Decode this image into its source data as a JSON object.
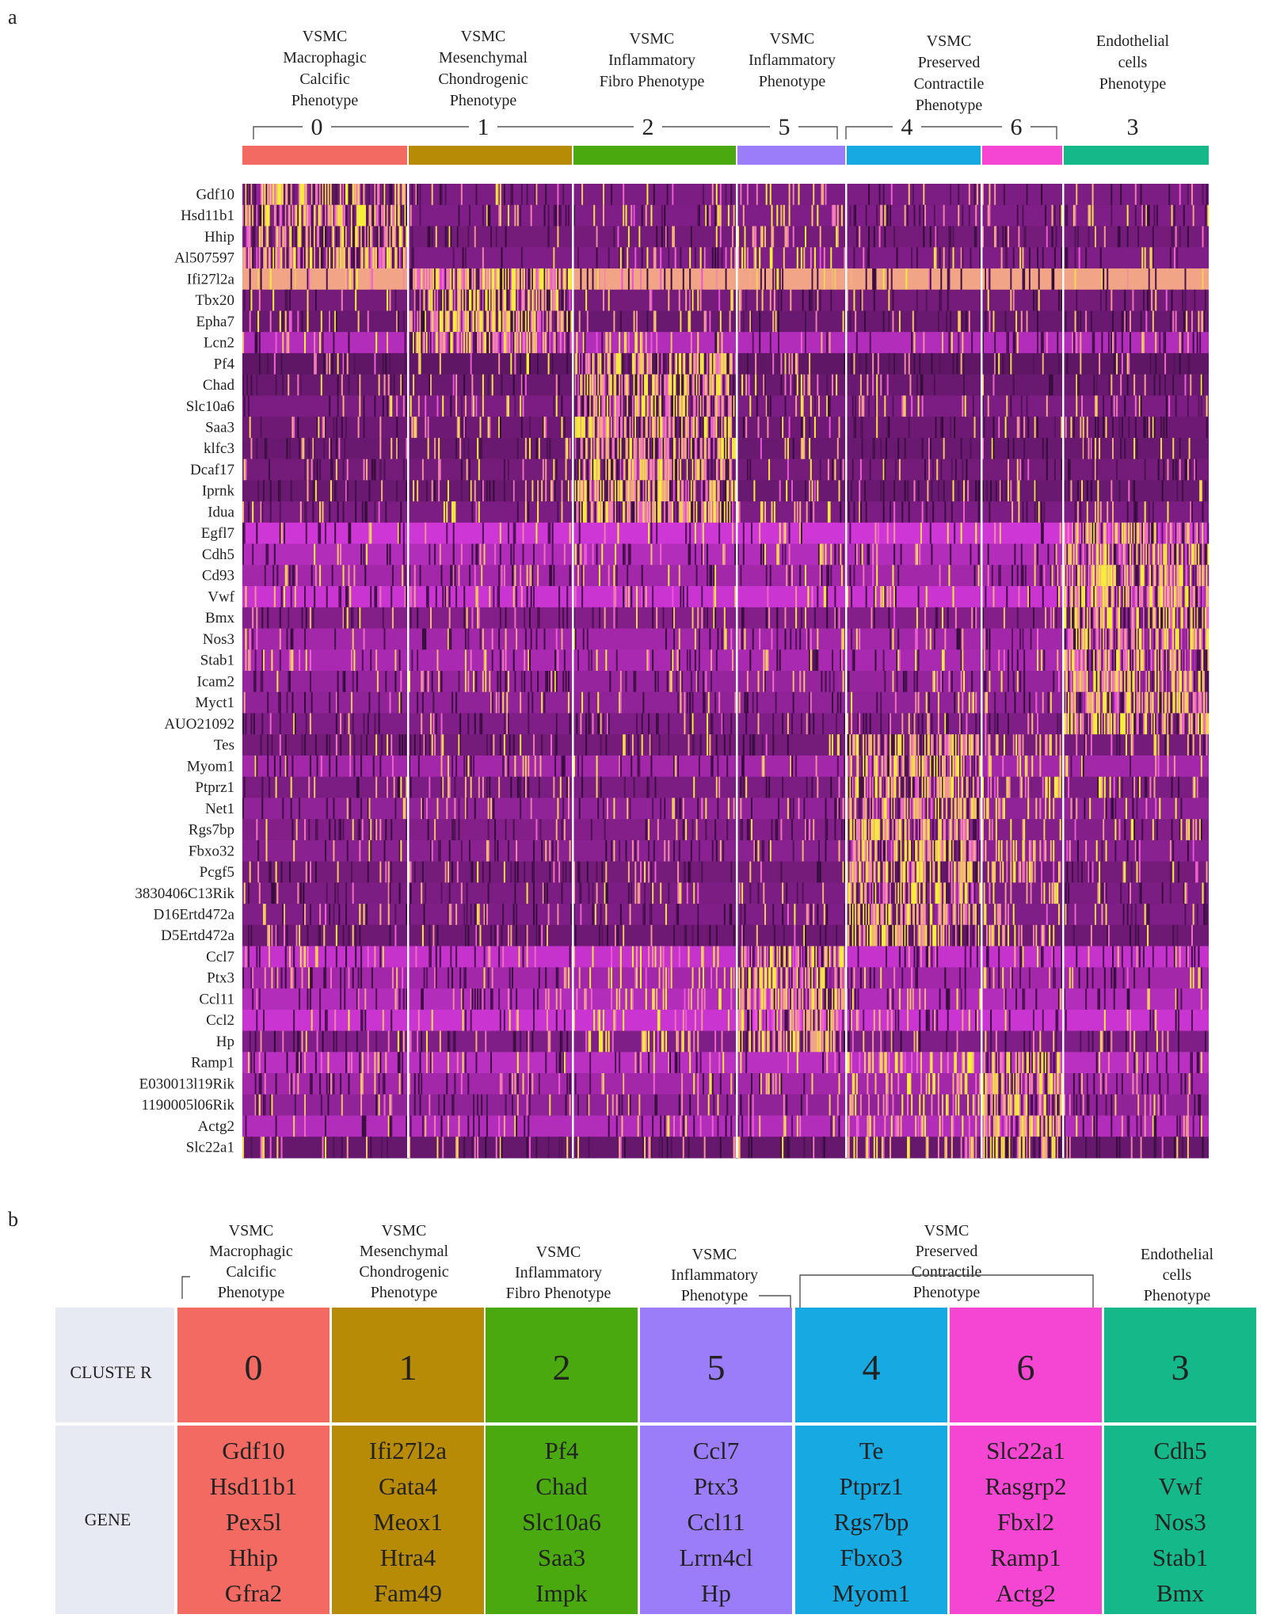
{
  "panel_a_label": "a",
  "panel_b_label": "b",
  "colors": {
    "cluster_0": "#f26a62",
    "cluster_1": "#b88b07",
    "cluster_2": "#4aa90e",
    "cluster_5": "#9b7cf9",
    "cluster_4": "#17a9e1",
    "cluster_6": "#f545d3",
    "cluster_3": "#14b889",
    "heat_low": "#2a0a2f",
    "heat_mid": "#8a2191",
    "heat_high": "#e93ef0",
    "heat_top": "#f7ef3a",
    "table_label_bg": "#e7eaf3"
  },
  "chart_data": {
    "type": "heatmap",
    "title": "",
    "clusters": [
      {
        "id": "0",
        "phenotype": [
          "VSMC",
          "Macrophagic",
          "Calcific",
          "Phenotype"
        ],
        "color": "#f26a62",
        "cells": 120
      },
      {
        "id": "1",
        "phenotype": [
          "VSMC",
          "Mesenchymal",
          "Chondrogenic",
          "Phenotype"
        ],
        "color": "#b88b07",
        "cells": 122
      },
      {
        "id": "2",
        "phenotype": [
          "VSMC",
          "Inflammatory",
          "Fibro Phenotype"
        ],
        "color": "#4aa90e",
        "cells": 122
      },
      {
        "id": "5",
        "phenotype": [
          "VSMC",
          "Inflammatory",
          "Phenotype"
        ],
        "color": "#9b7cf9",
        "cells": 80
      },
      {
        "id": "4",
        "phenotype": [
          "VSMC",
          "Preserved",
          "Contractile",
          "Phenotype"
        ],
        "color": "#17a9e1",
        "cells": 100
      },
      {
        "id": "6",
        "phenotype": [],
        "color": "#f545d3",
        "cells": 60
      },
      {
        "id": "3",
        "phenotype": [
          "Endothelial",
          "cells",
          "Phenotype"
        ],
        "color": "#14b889",
        "cells": 108
      }
    ],
    "genes": [
      "Gdf10",
      "Hsd11b1",
      "Hhip",
      "Al507597",
      "Ifi27l2a",
      "Tbx20",
      "Epha7",
      "Lcn2",
      "Pf4",
      "Chad",
      "Slc10a6",
      "Saa3",
      "klfc3",
      "Dcaf17",
      "Iprnk",
      "Idua",
      "Egfl7",
      "Cdh5",
      "Cd93",
      "Vwf",
      "Bmx",
      "Nos3",
      "Stab1",
      "Icam2",
      "Myct1",
      "AUO21092",
      "Tes",
      "Myom1",
      "Ptprz1",
      "Net1",
      "Rgs7bp",
      "Fbxo32",
      "Pcgf5",
      "3830406C13Rik",
      "D16Ertd472a",
      "D5Ertd472a",
      "Ccl7",
      "Ptx3",
      "Ccl11",
      "Ccl2",
      "Hp",
      "Ramp1",
      "E030013l19Rik",
      "1190005l06Rik",
      "Actg2",
      "Slc22a1"
    ],
    "gene_blocks": [
      {
        "cluster": "0",
        "genes": 4
      },
      {
        "cluster": "1",
        "genes": 4
      },
      {
        "cluster": "2",
        "genes": 8
      },
      {
        "cluster": "3",
        "genes": 10
      },
      {
        "cluster": "4",
        "genes": 10
      },
      {
        "cluster": "5",
        "genes": 5
      },
      {
        "cluster": "6",
        "genes": 5
      }
    ],
    "row_baseline": [
      0.38,
      0.4,
      0.35,
      0.4,
      0.92,
      0.35,
      0.3,
      0.62,
      0.25,
      0.3,
      0.38,
      0.32,
      0.3,
      0.35,
      0.3,
      0.38,
      0.74,
      0.62,
      0.55,
      0.72,
      0.42,
      0.55,
      0.58,
      0.5,
      0.48,
      0.4,
      0.35,
      0.55,
      0.38,
      0.48,
      0.42,
      0.45,
      0.35,
      0.38,
      0.4,
      0.32,
      0.7,
      0.55,
      0.62,
      0.72,
      0.4,
      0.65,
      0.55,
      0.48,
      0.62,
      0.28
    ],
    "value_scale": {
      "min": 0,
      "max": 1,
      "low_color": "dark purple",
      "mid_color": "magenta",
      "high_color": "yellow"
    }
  },
  "panel_b": {
    "row_labels": {
      "cluster": "CLUSTE R",
      "gene": "GENE"
    },
    "columns": [
      {
        "cluster": "0",
        "genes": [
          "Gdf10",
          "Hsd11b1",
          "Pex5l",
          "Hhip",
          "Gfra2"
        ]
      },
      {
        "cluster": "1",
        "genes": [
          "Ifi27l2a",
          "Gata4",
          "Meox1",
          "Htra4",
          "Fam49"
        ]
      },
      {
        "cluster": "2",
        "genes": [
          "Pf4",
          "Chad",
          "Slc10a6",
          "Saa3",
          "Impk"
        ]
      },
      {
        "cluster": "5",
        "genes": [
          "Ccl7",
          "Ptx3",
          "Ccl11",
          "Lrrn4cl",
          "Hp"
        ]
      },
      {
        "cluster": "4",
        "genes": [
          "Te",
          "Ptprz1",
          "Rgs7bp",
          "Fbxo3",
          "Myom1"
        ]
      },
      {
        "cluster": "6",
        "genes": [
          "Slc22a1",
          "Rasgrp2",
          "Fbxl2",
          "Ramp1",
          "Actg2"
        ]
      },
      {
        "cluster": "3",
        "genes": [
          "Cdh5",
          "Vwf",
          "Nos3",
          "Stab1",
          "Bmx"
        ]
      }
    ],
    "headers": [
      {
        "lines": [
          "VSMC",
          "Macrophagic",
          "Calcific",
          "Phenotype"
        ]
      },
      {
        "lines": [
          "VSMC",
          "Mesenchymal",
          "Chondrogenic",
          "Phenotype"
        ]
      },
      {
        "lines": [
          "VSMC",
          "Inflammatory",
          "Fibro Phenotype"
        ]
      },
      {
        "lines": [
          "VSMC",
          "Inflammatory",
          "Phenotype"
        ]
      },
      {
        "lines": [
          "VSMC",
          "Preserved",
          "Contractile",
          "Phenotype"
        ]
      },
      {
        "lines": [
          "Endothelial",
          "cells",
          "Phenotype"
        ]
      }
    ]
  }
}
